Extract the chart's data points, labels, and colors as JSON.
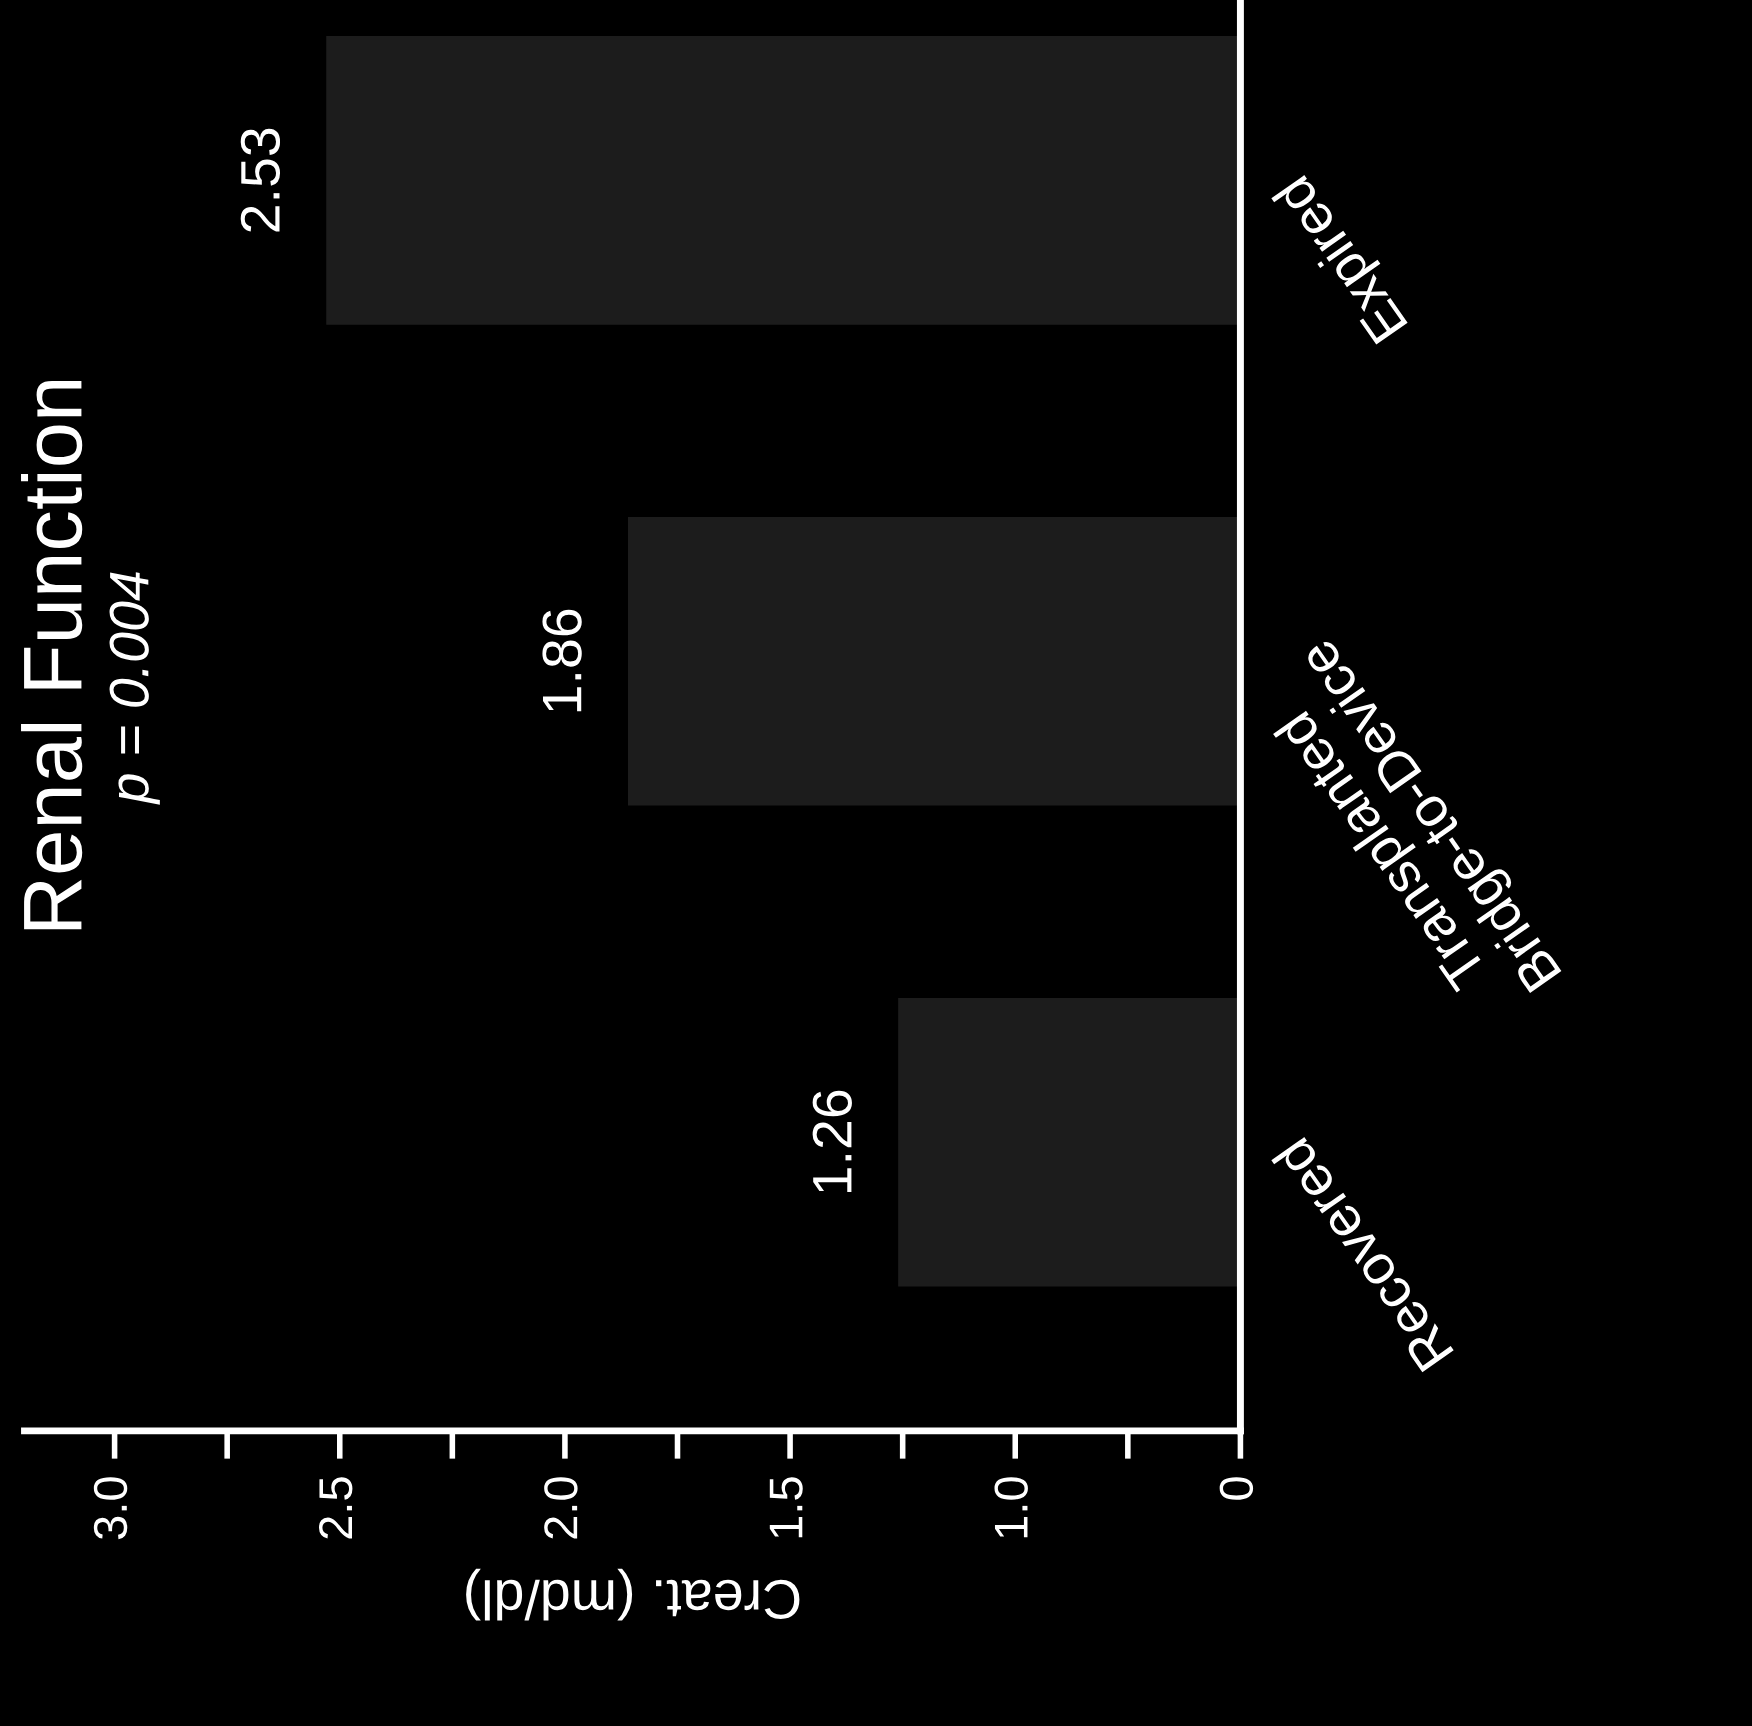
{
  "chart_data": {
    "type": "bar",
    "orientation": "horizontal",
    "title": "Renal Function",
    "xlabel": "Creat. (md/dl)",
    "categories": [
      "Expired",
      "Transplanted\nBridge-to-Device",
      "Recovered"
    ],
    "values": [
      2.53,
      1.86,
      1.26
    ],
    "color": "#1c1c1c",
    "data_labels": true,
    "xlim": [
      3.2,
      0.5
    ],
    "xticks": [
      {
        "value": 3,
        "label": "3.0"
      },
      {
        "value": 2.75,
        "label": null
      },
      2.5,
      {
        "value": 2.25,
        "label": null
      },
      {
        "value": 2,
        "label": "2.0"
      },
      {
        "value": 1.75,
        "label": null
      },
      1.5,
      {
        "value": 1.25,
        "label": null
      },
      {
        "value": 1,
        "label": "1.0"
      },
      {
        "value": 0.75,
        "label": null
      },
      {
        "value": 0.5,
        "label": "0"
      }
    ],
    "annotations": [
      "p = 0.004"
    ],
    "grid": false,
    "legend": false
  }
}
